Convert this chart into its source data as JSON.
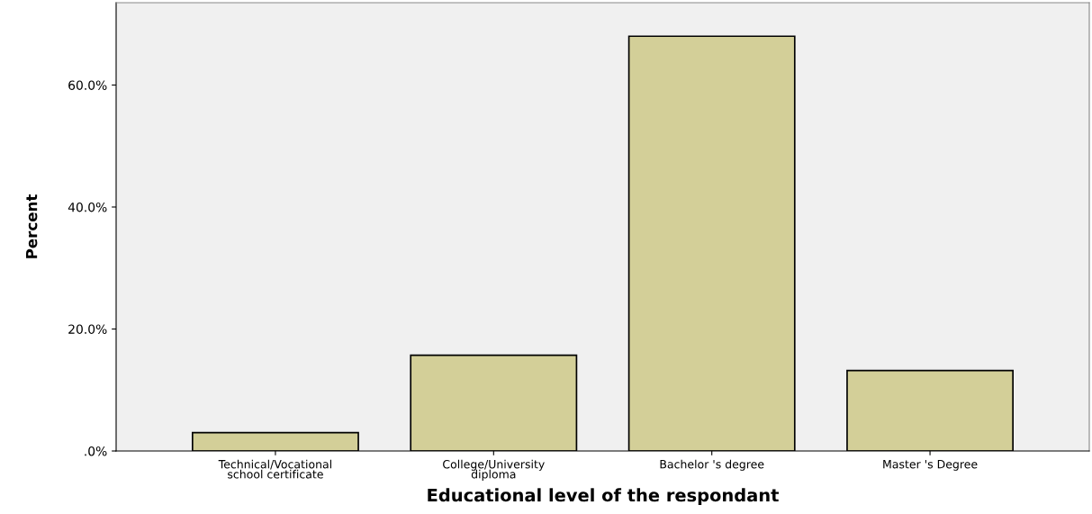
{
  "chart_data": {
    "type": "bar",
    "xlabel": "Educational level of the respondant",
    "ylabel": "Percent",
    "categories": [
      "Technical/Vocational\nschool certificate",
      "College/University\ndiploma",
      "Bachelor 's degree",
      "Master 's Degree"
    ],
    "values": [
      3.0,
      15.7,
      68.0,
      13.2
    ],
    "color": "#d3cf98",
    "ylim": [
      0,
      73.5
    ],
    "yticks": [
      {
        "value": 0,
        "label": ".0%"
      },
      {
        "value": 20,
        "label": "20.0%"
      },
      {
        "value": 40,
        "label": "40.0%"
      },
      {
        "value": 60,
        "label": "60.0%"
      }
    ],
    "grid": false
  }
}
